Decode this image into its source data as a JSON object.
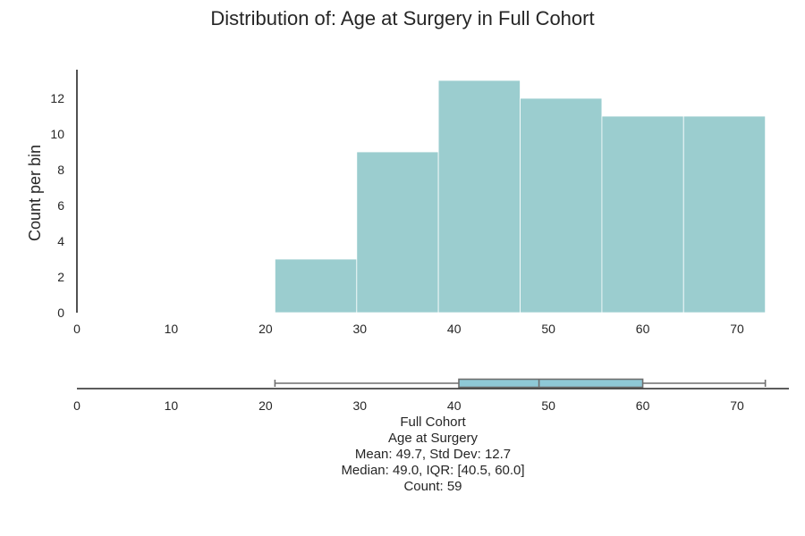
{
  "title": "Distribution of: Age at Surgery in Full Cohort",
  "chart_data": [
    {
      "type": "bar",
      "subtype": "histogram",
      "bin_edges": [
        21.0,
        29.67,
        38.33,
        47.0,
        55.67,
        64.33,
        73.0
      ],
      "values": [
        3,
        9,
        13,
        12,
        11,
        11
      ],
      "xlim": [
        0,
        75.5
      ],
      "ylim": [
        0,
        13.6
      ],
      "xticks": [
        0,
        10,
        20,
        30,
        40,
        50,
        60,
        70
      ],
      "yticks": [
        0,
        2,
        4,
        6,
        8,
        10,
        12
      ],
      "xlabel": "",
      "ylabel": "Count per bin",
      "bar_color": "#9bcdcf",
      "grid": false
    },
    {
      "type": "box",
      "min": 21,
      "q1": 40.5,
      "median": 49.0,
      "q3": 60.0,
      "max": 73,
      "xlim": [
        0,
        75.5
      ],
      "xticks": [
        0,
        10,
        20,
        30,
        40,
        50,
        60,
        70
      ],
      "box_color": "#8ec8d6"
    }
  ],
  "caption": {
    "line1": "Full Cohort",
    "line2": "Age at Surgery",
    "line3": "Mean: 49.7, Std Dev: 12.7",
    "line4": "Median: 49.0, IQR: [40.5, 60.0]",
    "line5": "Count: 59"
  }
}
